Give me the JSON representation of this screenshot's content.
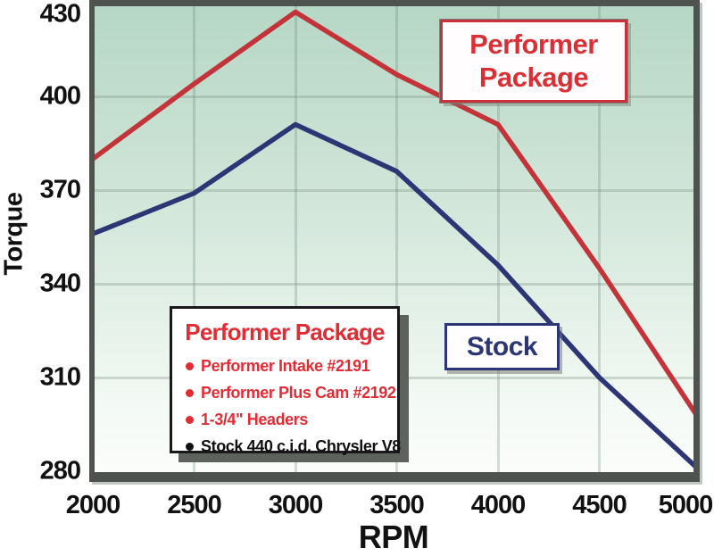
{
  "chart_data": {
    "type": "line",
    "title": "",
    "xlabel": "RPM",
    "ylabel": "Torque",
    "x": [
      2000,
      2500,
      3000,
      3500,
      4000,
      4500,
      5000
    ],
    "x_tick_labels": [
      "2000",
      "2500",
      "3000",
      "3500",
      "4000",
      "4500",
      "5000"
    ],
    "y_ticks": [
      430,
      400,
      370,
      340,
      310,
      280
    ],
    "xlim": [
      2000,
      5000
    ],
    "ylim": [
      280,
      430
    ],
    "grid": true,
    "legend_position": "inside-bottom-left",
    "series": [
      {
        "name": "Performer Package",
        "color": "#c2343a",
        "values": [
          380,
          404,
          427,
          407,
          391,
          345,
          296
        ]
      },
      {
        "name": "Stock",
        "color": "#2c3674",
        "values": [
          356,
          369,
          391,
          376,
          346,
          310,
          280
        ]
      }
    ]
  },
  "callouts": {
    "performer": {
      "line1": "Performer",
      "line2": "Package",
      "color": "#d93036"
    },
    "stock": {
      "label": "Stock",
      "color": "#2c3674"
    }
  },
  "legend": {
    "title": "Performer Package",
    "title_color": "#e02d34",
    "items": [
      {
        "text": "Performer Intake #2191",
        "color": "#e02d34"
      },
      {
        "text": "Performer Plus Cam #2192",
        "color": "#e02d34"
      },
      {
        "text": "1-3/4\" Headers",
        "color": "#e02d34"
      },
      {
        "text": "Stock 440 c.i.d. Chrysler V8",
        "color": "#111111"
      }
    ]
  },
  "colors": {
    "plot_border": "#4e534f",
    "grid_line": "#6a8575",
    "background_top": "#b6d7c6",
    "background_bottom": "#fbfdfb",
    "red_series": "#c2343a",
    "blue_series": "#2c3674"
  }
}
